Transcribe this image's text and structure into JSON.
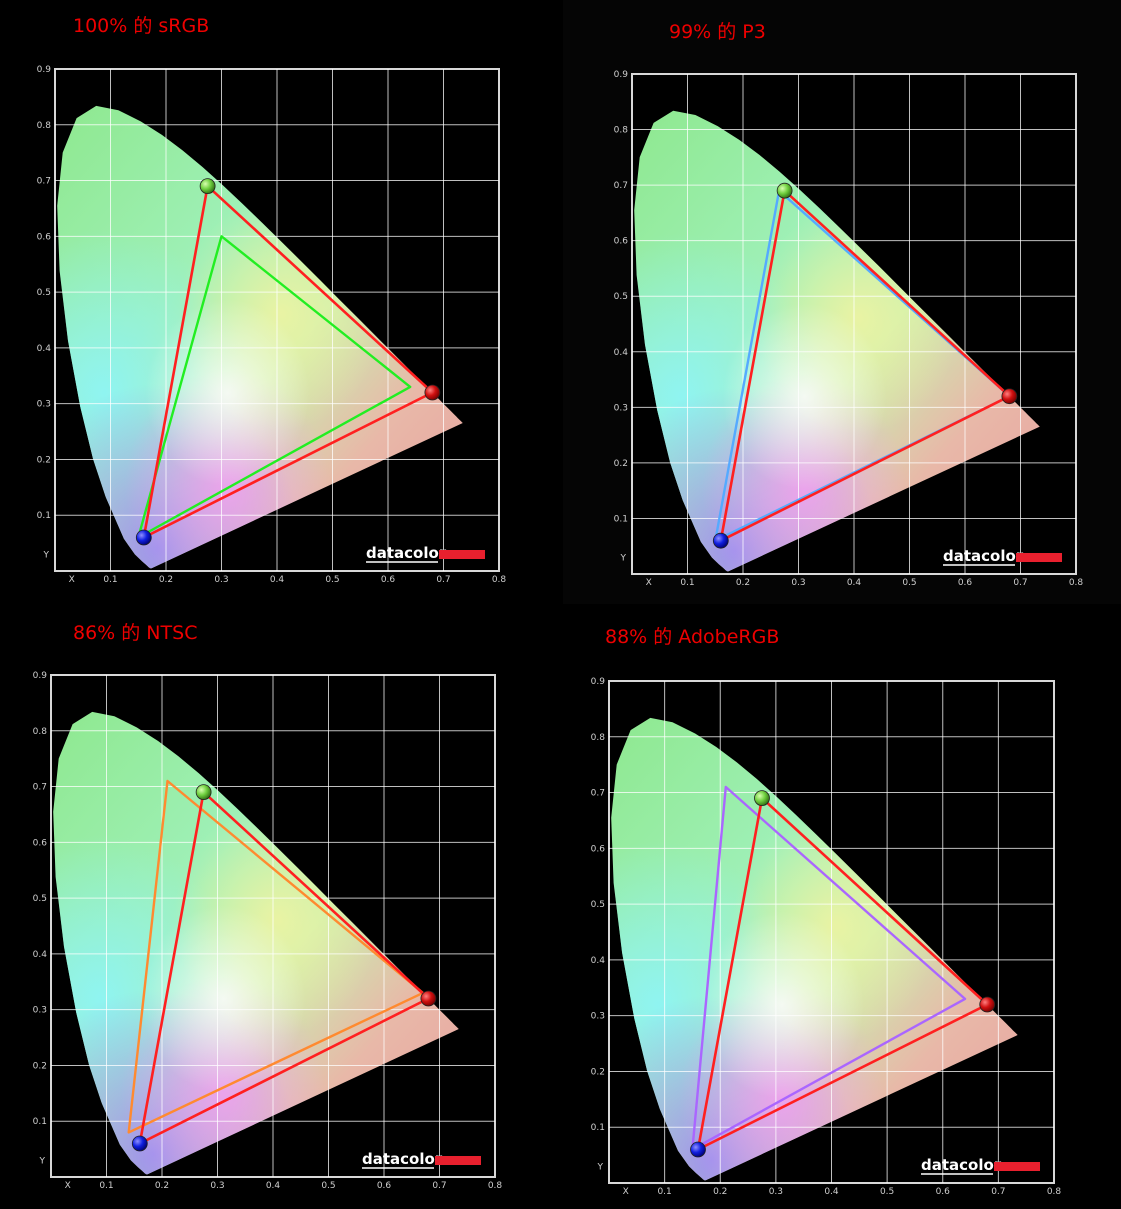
{
  "panels": [
    {
      "title": "100% 的 sRGB"
    },
    {
      "title": "99% 的 P3"
    },
    {
      "title": "86% 的 NTSC"
    },
    {
      "title": "88% 的 AdobeRGB"
    }
  ],
  "colors": {
    "measured": "#ff2020",
    "srgb": "#22ee22",
    "p3": "#55aaff",
    "ntsc": "#ff8a30",
    "adobergb": "#aa66ff",
    "brand_bar": "#e8202e",
    "title": "#ee0000"
  },
  "chart_data": [
    {
      "type": "scatter",
      "title": "100% 的 sRGB",
      "xlabel": "X",
      "ylabel": "Y",
      "xlim": [
        0,
        0.8
      ],
      "ylim": [
        0,
        0.9
      ],
      "xticks": [
        "0.1",
        "0.2",
        "0.3",
        "0.4",
        "0.5",
        "0.6",
        "0.7",
        "0.8"
      ],
      "yticks": [
        "0.1",
        "0.2",
        "0.3",
        "0.4",
        "0.5",
        "0.6",
        "0.7",
        "0.8",
        "0.9"
      ],
      "grid": true,
      "brand": "datacolor",
      "series": [
        {
          "role": "measured",
          "points": [
            [
              0.275,
              0.69
            ],
            [
              0.68,
              0.32
            ],
            [
              0.16,
              0.06
            ]
          ]
        },
        {
          "role": "srgb",
          "points": [
            [
              0.3,
              0.6
            ],
            [
              0.64,
              0.33
            ],
            [
              0.15,
              0.06
            ]
          ]
        }
      ]
    },
    {
      "type": "scatter",
      "title": "99% 的 P3",
      "xlabel": "X",
      "ylabel": "Y",
      "xlim": [
        0,
        0.8
      ],
      "ylim": [
        0,
        0.9
      ],
      "xticks": [
        "0.1",
        "0.2",
        "0.3",
        "0.4",
        "0.5",
        "0.6",
        "0.7",
        "0.8"
      ],
      "yticks": [
        "0.1",
        "0.2",
        "0.3",
        "0.4",
        "0.5",
        "0.6",
        "0.7",
        "0.8",
        "0.9"
      ],
      "grid": true,
      "brand": "datacolor",
      "series": [
        {
          "role": "measured",
          "points": [
            [
              0.275,
              0.69
            ],
            [
              0.68,
              0.32
            ],
            [
              0.16,
              0.06
            ]
          ]
        },
        {
          "role": "p3",
          "points": [
            [
              0.265,
              0.69
            ],
            [
              0.68,
              0.32
            ],
            [
              0.15,
              0.06
            ]
          ]
        }
      ]
    },
    {
      "type": "scatter",
      "title": "86% 的 NTSC",
      "xlabel": "X",
      "ylabel": "Y",
      "xlim": [
        0,
        0.8
      ],
      "ylim": [
        0,
        0.9
      ],
      "xticks": [
        "0.1",
        "0.2",
        "0.3",
        "0.4",
        "0.5",
        "0.6",
        "0.7",
        "0.8"
      ],
      "yticks": [
        "0.1",
        "0.2",
        "0.3",
        "0.4",
        "0.5",
        "0.6",
        "0.7",
        "0.8",
        "0.9"
      ],
      "grid": true,
      "brand": "datacolor",
      "series": [
        {
          "role": "measured",
          "points": [
            [
              0.275,
              0.69
            ],
            [
              0.68,
              0.32
            ],
            [
              0.16,
              0.06
            ]
          ]
        },
        {
          "role": "ntsc",
          "points": [
            [
              0.21,
              0.71
            ],
            [
              0.67,
              0.33
            ],
            [
              0.14,
              0.08
            ]
          ]
        }
      ]
    },
    {
      "type": "scatter",
      "title": "88% 的 AdobeRGB",
      "xlabel": "X",
      "ylabel": "Y",
      "xlim": [
        0,
        0.8
      ],
      "ylim": [
        0,
        0.9
      ],
      "xticks": [
        "0.1",
        "0.2",
        "0.3",
        "0.4",
        "0.5",
        "0.6",
        "0.7",
        "0.8"
      ],
      "yticks": [
        "0.1",
        "0.2",
        "0.3",
        "0.4",
        "0.5",
        "0.6",
        "0.7",
        "0.8",
        "0.9"
      ],
      "grid": true,
      "brand": "datacolor",
      "series": [
        {
          "role": "measured",
          "points": [
            [
              0.275,
              0.69
            ],
            [
              0.68,
              0.32
            ],
            [
              0.16,
              0.06
            ]
          ]
        },
        {
          "role": "adobergb",
          "points": [
            [
              0.21,
              0.71
            ],
            [
              0.64,
              0.33
            ],
            [
              0.15,
              0.06
            ]
          ]
        }
      ]
    }
  ],
  "locus": [
    [
      0.1741,
      0.005
    ],
    [
      0.1738,
      0.0049
    ],
    [
      0.1733,
      0.0048
    ],
    [
      0.1726,
      0.0048
    ],
    [
      0.1714,
      0.0051
    ],
    [
      0.1689,
      0.0069
    ],
    [
      0.1644,
      0.0109
    ],
    [
      0.1566,
      0.0177
    ],
    [
      0.144,
      0.0297
    ],
    [
      0.1241,
      0.0578
    ],
    [
      0.0913,
      0.1327
    ],
    [
      0.0687,
      0.2007
    ],
    [
      0.0454,
      0.295
    ],
    [
      0.0235,
      0.4127
    ],
    [
      0.0082,
      0.5384
    ],
    [
      0.0039,
      0.6548
    ],
    [
      0.0139,
      0.7502
    ],
    [
      0.0389,
      0.812
    ],
    [
      0.0743,
      0.8338
    ],
    [
      0.1142,
      0.8262
    ],
    [
      0.1547,
      0.8059
    ],
    [
      0.1929,
      0.7816
    ],
    [
      0.2296,
      0.7543
    ],
    [
      0.2658,
      0.7243
    ],
    [
      0.3016,
      0.6923
    ],
    [
      0.3373,
      0.6589
    ],
    [
      0.3731,
      0.6245
    ],
    [
      0.4087,
      0.5896
    ],
    [
      0.4441,
      0.5547
    ],
    [
      0.4788,
      0.5202
    ],
    [
      0.5125,
      0.4866
    ],
    [
      0.5448,
      0.4544
    ],
    [
      0.5752,
      0.4242
    ],
    [
      0.6029,
      0.3965
    ],
    [
      0.627,
      0.3725
    ],
    [
      0.6482,
      0.3514
    ],
    [
      0.6658,
      0.334
    ],
    [
      0.6801,
      0.3197
    ],
    [
      0.6915,
      0.3083
    ],
    [
      0.7006,
      0.2993
    ],
    [
      0.7079,
      0.292
    ],
    [
      0.714,
      0.2859
    ],
    [
      0.719,
      0.2809
    ],
    [
      0.723,
      0.277
    ],
    [
      0.726,
      0.274
    ],
    [
      0.7283,
      0.2717
    ],
    [
      0.73,
      0.27
    ],
    [
      0.7311,
      0.2689
    ],
    [
      0.732,
      0.268
    ],
    [
      0.7327,
      0.2673
    ],
    [
      0.7334,
      0.2666
    ],
    [
      0.734,
      0.266
    ],
    [
      0.7344,
      0.2656
    ],
    [
      0.7346,
      0.2654
    ],
    [
      0.7347,
      0.2653
    ]
  ]
}
